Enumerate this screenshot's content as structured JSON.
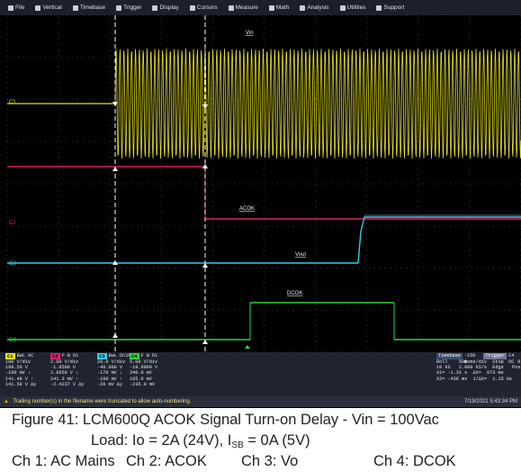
{
  "menu": {
    "items": [
      {
        "label": "File",
        "icon": "file-icon"
      },
      {
        "label": "Vertical",
        "icon": "vertical-icon"
      },
      {
        "label": "Timebase",
        "icon": "timebase-icon"
      },
      {
        "label": "Trigger",
        "icon": "trigger-icon"
      },
      {
        "label": "Display",
        "icon": "display-icon"
      },
      {
        "label": "Cursors",
        "icon": "cursors-icon"
      },
      {
        "label": "Measure",
        "icon": "measure-icon"
      },
      {
        "label": "Math",
        "icon": "math-icon"
      },
      {
        "label": "Analysis",
        "icon": "analysis-icon"
      },
      {
        "label": "Utilities",
        "icon": "utilities-icon"
      },
      {
        "label": "Support",
        "icon": "support-icon"
      }
    ]
  },
  "traces": {
    "vin_label": "Vin",
    "acok_label": "ACOK",
    "vout_label": "Vout",
    "dcok_label": "DCOK",
    "c1_marker": "C1",
    "c2_marker": "C2",
    "c3_marker": "C3",
    "c4_marker": "C4",
    "colors": {
      "c1": "#e6e020",
      "c2": "#e0206a",
      "c3": "#3fc8e0",
      "c4": "#35d046"
    }
  },
  "channels": [
    {
      "tag": "C1",
      "title": "BwL AC",
      "color": "#e6e020",
      "rows": [
        "100 V/div",
        "199.50 V",
        "-100 mV ↓",
        "141.48 V ↑",
        "141.58 V Δy"
      ]
    },
    {
      "tag": "C2",
      "title": "F B D1",
      "color": "#e0206a",
      "rows": [
        "2.00 V/div",
        "-1.9500 V",
        "2.6650 V ↓",
        "241.3 mV ↑",
        "-2.4237 V Δy"
      ]
    },
    {
      "tag": "C3",
      "title": "BwL DC1M",
      "color": "#3fc8e0",
      "rows": [
        "20.0 V/div",
        "-40.000 V",
        "-170 mV ↓",
        "-190 mV ↑",
        "-20 mV Δy"
      ]
    },
    {
      "tag": "C4",
      "title": "F B D1",
      "color": "#35d046",
      "rows": [
        "5.00 V/div",
        "-19.9000 V",
        "340.0 mV",
        "105.0 mV",
        "-235.0 mV"
      ]
    }
  ],
  "timebase": {
    "tag": "Timebase",
    "tag_value": "-150 ms",
    "trigger_tag": "Trigger",
    "trigger_value": "C4 DC",
    "rows": [
      "Roll    500 ms/div  Stop     0.00 V",
      "10 kS   2.000 kS/s  Edge   Positive",
      "X1= -1.31 s  ΔX=  873 ms",
      "X2= -436 ms  1/ΔX=  1.15 Hz"
    ]
  },
  "status": {
    "message": "Trailing number(s) in the filename were truncated to allow auto-numbering.",
    "timestamp": "7/19/2021 5:43:34 PM"
  },
  "caption": {
    "line1": "Figure 41:  LCM600Q ACOK Signal Turn-on Delay - Vin = 100Vac",
    "line2_pre": "Load: Io = 2A (24V), I",
    "line2_sub": "SB",
    "line2_post": " = 0A (5V)",
    "ch1": "Ch 1: AC Mains",
    "ch2": "Ch 2: ACOK",
    "ch3": "Ch 3: Vo",
    "ch4": "Ch 4: DCOK"
  }
}
